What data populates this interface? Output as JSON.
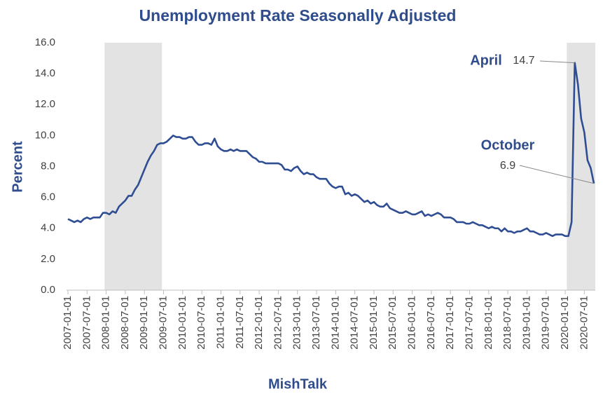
{
  "chart_data": {
    "type": "line",
    "title": "Unemployment Rate Seasonally Adjusted",
    "y_label": "Percent",
    "x_label": "MishTalk",
    "annotations": [
      "April",
      "October"
    ],
    "categories": [
      "2007-01-01",
      null,
      null,
      null,
      null,
      null,
      "2007-07-01",
      null,
      null,
      null,
      null,
      null,
      "2008-01-01",
      null,
      null,
      null,
      null,
      null,
      "2008-07-01",
      null,
      null,
      null,
      null,
      null,
      "2009-01-01",
      null,
      null,
      null,
      null,
      null,
      "2009-07-01",
      null,
      null,
      null,
      null,
      null,
      "2010-01-01",
      null,
      null,
      null,
      null,
      null,
      "2010-07-01",
      null,
      null,
      null,
      null,
      null,
      "2011-01-01",
      null,
      null,
      null,
      null,
      null,
      "2011-07-01",
      null,
      null,
      null,
      null,
      null,
      "2012-01-01",
      null,
      null,
      null,
      null,
      null,
      "2012-07-01",
      null,
      null,
      null,
      null,
      null,
      "2013-01-01",
      null,
      null,
      null,
      null,
      null,
      "2013-07-01",
      null,
      null,
      null,
      null,
      null,
      "2014-01-01",
      null,
      null,
      null,
      null,
      null,
      "2014-07-01",
      null,
      null,
      null,
      null,
      null,
      "2015-01-01",
      null,
      null,
      null,
      null,
      null,
      "2015-07-01",
      null,
      null,
      null,
      null,
      null,
      "2016-01-01",
      null,
      null,
      null,
      null,
      null,
      "2016-07-01",
      null,
      null,
      null,
      null,
      null,
      "2017-01-01",
      null,
      null,
      null,
      null,
      null,
      "2017-07-01",
      null,
      null,
      null,
      null,
      null,
      "2018-01-01",
      null,
      null,
      null,
      null,
      null,
      "2018-07-01",
      null,
      null,
      null,
      null,
      null,
      "2019-01-01",
      null,
      null,
      null,
      null,
      null,
      "2019-07-01",
      null,
      null,
      null,
      null,
      null,
      "2020-01-01",
      null,
      null,
      null,
      null,
      null,
      "2020-07-01",
      null,
      null,
      null
    ],
    "series": [
      {
        "name": "Unemployment Rate",
        "color": "#2e4d93",
        "values": [
          4.6,
          4.5,
          4.4,
          4.5,
          4.4,
          4.6,
          4.7,
          4.6,
          4.7,
          4.7,
          4.7,
          5.0,
          5.0,
          4.9,
          5.1,
          5.0,
          5.4,
          5.6,
          5.8,
          6.1,
          6.1,
          6.5,
          6.8,
          7.3,
          7.8,
          8.3,
          8.7,
          9.0,
          9.4,
          9.5,
          9.5,
          9.6,
          9.8,
          10.0,
          9.9,
          9.9,
          9.8,
          9.8,
          9.9,
          9.9,
          9.6,
          9.4,
          9.4,
          9.5,
          9.5,
          9.4,
          9.8,
          9.3,
          9.1,
          9.0,
          9.0,
          9.1,
          9.0,
          9.1,
          9.0,
          9.0,
          9.0,
          8.8,
          8.6,
          8.5,
          8.3,
          8.3,
          8.2,
          8.2,
          8.2,
          8.2,
          8.2,
          8.1,
          7.8,
          7.8,
          7.7,
          7.9,
          8.0,
          7.7,
          7.5,
          7.6,
          7.5,
          7.5,
          7.3,
          7.2,
          7.2,
          7.2,
          6.9,
          6.7,
          6.6,
          6.7,
          6.7,
          6.2,
          6.3,
          6.1,
          6.2,
          6.1,
          5.9,
          5.7,
          5.8,
          5.6,
          5.7,
          5.5,
          5.4,
          5.4,
          5.6,
          5.3,
          5.2,
          5.1,
          5.0,
          5.0,
          5.1,
          5.0,
          4.9,
          4.9,
          5.0,
          5.1,
          4.8,
          4.9,
          4.8,
          4.9,
          5.0,
          4.9,
          4.7,
          4.7,
          4.7,
          4.6,
          4.4,
          4.4,
          4.4,
          4.3,
          4.3,
          4.4,
          4.3,
          4.2,
          4.2,
          4.1,
          4.0,
          4.1,
          4.0,
          4.0,
          3.8,
          4.0,
          3.8,
          3.8,
          3.7,
          3.8,
          3.8,
          3.9,
          4.0,
          3.8,
          3.8,
          3.7,
          3.6,
          3.6,
          3.7,
          3.6,
          3.5,
          3.6,
          3.6,
          3.6,
          3.5,
          3.5,
          4.4,
          14.7,
          13.3,
          11.1,
          10.2,
          8.4,
          7.9,
          6.9
        ]
      }
    ],
    "ylim": [
      0,
      16
    ],
    "yticks": [
      {
        "value": 0,
        "label": "0.0"
      },
      {
        "value": 2,
        "label": "2.0"
      },
      {
        "value": 4,
        "label": "4.0"
      },
      {
        "value": 6,
        "label": "6.0"
      },
      {
        "value": 8,
        "label": "8.0"
      },
      {
        "value": 10,
        "label": "10.0"
      },
      {
        "value": 12,
        "label": "12.0"
      },
      {
        "value": 14,
        "label": "14.0"
      },
      {
        "value": 16,
        "label": "16.0"
      }
    ],
    "grid": false
  }
}
